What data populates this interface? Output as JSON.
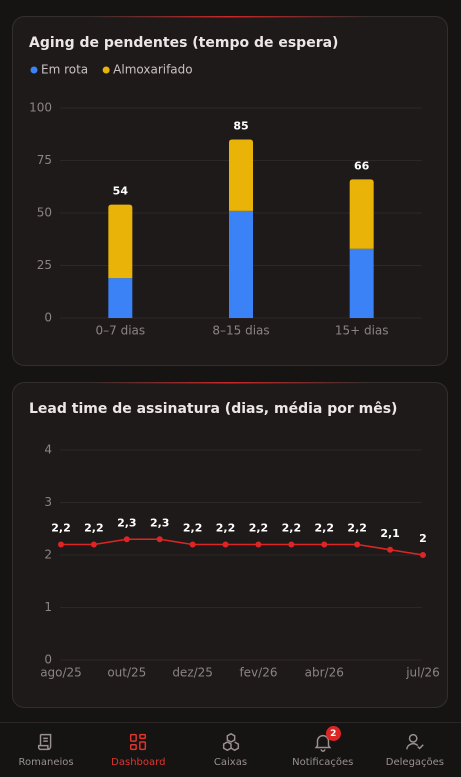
{
  "chart_data": [
    {
      "type": "bar",
      "title": "Aging de pendentes (tempo de espera)",
      "categories": [
        "0–7 dias",
        "8–15 dias",
        "15+ dias"
      ],
      "stacked": true,
      "series": [
        {
          "name": "Em rota",
          "color": "#3b82f6",
          "values": [
            19,
            51,
            33
          ]
        },
        {
          "name": "Almoxarifado",
          "color": "#eab308",
          "values": [
            35,
            34,
            33
          ]
        }
      ],
      "totals": [
        54,
        85,
        66
      ],
      "ylim": [
        0,
        100
      ],
      "yticks": [
        0,
        25,
        50,
        75,
        100
      ],
      "grid": true
    },
    {
      "type": "line",
      "title": "Lead time de assinatura (dias, média por mês)",
      "categories": [
        "ago/25",
        null,
        "out/25",
        null,
        "dez/25",
        null,
        "fev/26",
        null,
        "abr/26",
        null,
        null,
        "jul/26"
      ],
      "values": [
        2.2,
        2.2,
        2.3,
        2.3,
        2.2,
        2.2,
        2.2,
        2.2,
        2.2,
        2.2,
        2.1,
        2
      ],
      "value_labels": [
        "2,2",
        "2,2",
        "2,3",
        "2,3",
        "2,2",
        "2,2",
        "2,2",
        "2,2",
        "2,2",
        "2,2",
        "2,1",
        "2"
      ],
      "color": "#dc2626",
      "ylim": [
        0,
        4
      ],
      "yticks": [
        0,
        1,
        2,
        3,
        4
      ],
      "grid": true
    }
  ],
  "nav": {
    "items": [
      "Romaneios",
      "Dashboard",
      "Caixas",
      "Notificações",
      "Delegações"
    ],
    "badge": 2
  }
}
